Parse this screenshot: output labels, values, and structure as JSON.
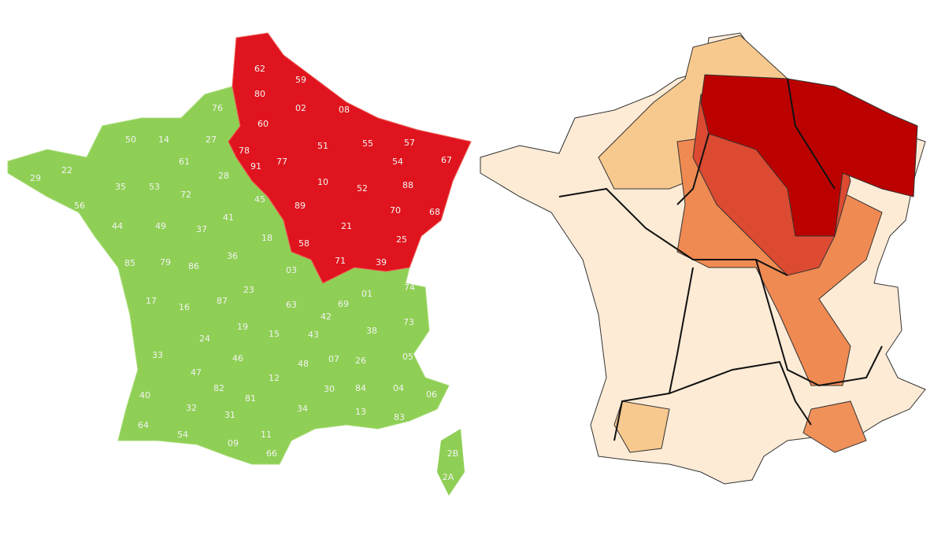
{
  "left_map": {
    "labels": [
      "62",
      "59",
      "80",
      "02",
      "08",
      "60",
      "51",
      "55",
      "57",
      "78",
      "91",
      "77",
      "54",
      "67",
      "10",
      "52",
      "88",
      "89",
      "70",
      "68",
      "21",
      "58",
      "25",
      "71",
      "39",
      "76",
      "50",
      "14",
      "27",
      "61",
      "28",
      "29",
      "22",
      "35",
      "53",
      "72",
      "45",
      "56",
      "41",
      "44",
      "49",
      "37",
      "18",
      "85",
      "79",
      "86",
      "36",
      "03",
      "17",
      "16",
      "87",
      "23",
      "63",
      "69",
      "01",
      "74",
      "42",
      "73",
      "19",
      "15",
      "43",
      "38",
      "24",
      "33",
      "46",
      "12",
      "48",
      "07",
      "26",
      "05",
      "47",
      "82",
      "81",
      "30",
      "84",
      "04",
      "06",
      "40",
      "32",
      "34",
      "13",
      "83",
      "31",
      "64",
      "54",
      "09",
      "11",
      "66",
      "2B",
      "2A"
    ]
  }
}
